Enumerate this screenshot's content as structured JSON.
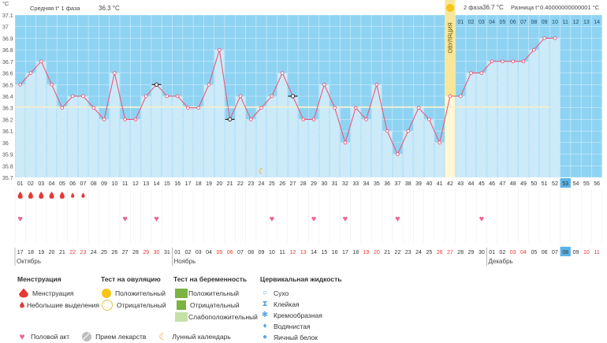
{
  "header": {
    "unit": "°C",
    "phase1": "Средняя t° 1 фаза",
    "phase1_value": "36.3 °C",
    "phase2": "2 фаза",
    "phase2_value": "36.7 °C",
    "diff": "Разница t°",
    "diff_value": "0.40000000000001 °C"
  },
  "chart_data": {
    "type": "line",
    "title": "",
    "ylabel": "°C",
    "ylim": [
      35.7,
      37.1
    ],
    "yticks": [
      "37.1",
      "37",
      "36.9",
      "36.8",
      "36.7",
      "36.6",
      "36.5",
      "36.4",
      "36.3",
      "36.2",
      "36.1",
      "36",
      "35.9",
      "35.8",
      "35.7"
    ],
    "grid": true,
    "cycle_days": [
      "01",
      "02",
      "03",
      "04",
      "05",
      "06",
      "07",
      "08",
      "09",
      "10",
      "11",
      "12",
      "13",
      "14",
      "15",
      "16",
      "17",
      "18",
      "19",
      "20",
      "21",
      "22",
      "23",
      "24",
      "25",
      "26",
      "27",
      "28",
      "29",
      "30",
      "31",
      "32",
      "33",
      "34",
      "35",
      "36",
      "37",
      "38",
      "39",
      "40",
      "41",
      "42",
      "43",
      "44",
      "45",
      "46",
      "47",
      "48",
      "49",
      "50",
      "51",
      "52",
      "53",
      "54",
      "55",
      "56"
    ],
    "top_days": [
      "01",
      "02",
      "03",
      "04",
      "05",
      "06",
      "07",
      "08",
      "09",
      "10",
      "11",
      "12",
      "13",
      "14"
    ],
    "temperatures": [
      36.5,
      36.6,
      36.7,
      36.5,
      36.3,
      36.4,
      36.4,
      36.3,
      36.2,
      36.6,
      36.2,
      36.2,
      36.4,
      36.5,
      36.4,
      36.4,
      36.3,
      36.3,
      36.5,
      36.8,
      36.2,
      36.4,
      36.2,
      36.3,
      36.4,
      36.6,
      36.4,
      36.2,
      36.2,
      36.5,
      36.3,
      36.0,
      36.3,
      36.2,
      36.5,
      36.1,
      35.9,
      36.1,
      36.3,
      36.2,
      36.0,
      36.4,
      36.4,
      36.6,
      36.6,
      36.7,
      36.7,
      36.7,
      36.7,
      36.8,
      36.9,
      36.9
    ],
    "open_markers": [
      "14",
      "21",
      "27"
    ],
    "baseline": 36.3,
    "ovulation_day": "42",
    "ovulation_label": "ОВУЛЯЦИЯ",
    "highlight_day": "53",
    "dates": [
      "17",
      "18",
      "19",
      "20",
      "21",
      "22",
      "23",
      "24",
      "25",
      "26",
      "27",
      "28",
      "29",
      "30",
      "31",
      "01",
      "02",
      "03",
      "04",
      "05",
      "06",
      "07",
      "08",
      "09",
      "10",
      "11",
      "12",
      "13",
      "14",
      "15",
      "16",
      "17",
      "18",
      "19",
      "20",
      "21",
      "22",
      "23",
      "24",
      "25",
      "26",
      "27",
      "28",
      "29",
      "30",
      "01",
      "02",
      "03",
      "04",
      "05",
      "06",
      "07",
      "08",
      "09",
      "10",
      "11"
    ],
    "weekend_dates_idx": [
      5,
      6,
      12,
      13,
      19,
      20,
      26,
      27,
      33,
      34,
      40,
      41,
      47,
      48,
      54,
      55
    ],
    "highlight_date": "08",
    "months": [
      {
        "label": "Октябрь",
        "day_idx": 0
      },
      {
        "label": "Ноябрь",
        "day_idx": 15
      },
      {
        "label": "Декабрь",
        "day_idx": 45
      }
    ],
    "menstruation_days": [
      "01",
      "02",
      "03",
      "04",
      "05",
      "06",
      "07"
    ],
    "menstruation_small": [
      "06",
      "07"
    ],
    "intercourse_days": [
      "01",
      "11",
      "14",
      "25",
      "29",
      "32",
      "37",
      "45"
    ]
  },
  "legend": {
    "menstruation": {
      "title": "Менструация",
      "items": [
        "Менструация",
        "Небольшие выделения"
      ]
    },
    "ovulation_test": {
      "title": "Тест на овуляцию",
      "items": [
        "Положительный",
        "Отрицательный"
      ]
    },
    "pregnancy_test": {
      "title": "Тест на беременность",
      "items": [
        "Положительный",
        "Отрицательный",
        "Слабоположительный"
      ]
    },
    "cervical": {
      "title": "Цервикальная жидкость",
      "items": [
        "Сухо",
        "Клейкая",
        "Кремообразная",
        "Водянистая",
        "Яичный белок"
      ]
    },
    "bottom": [
      "Половой акт",
      "Прием лекарств",
      "Лунный календарь"
    ]
  },
  "colors": {
    "bar": "#cdeaf9",
    "bar_dark": "#b3dcf3",
    "plot_bg": "#8fd3f3",
    "line": "#e85a7a",
    "ovulation": "#f8e79a",
    "baseline": "#f3f0c8",
    "weekend": "#e53935",
    "highlight": "#5ab4e6"
  }
}
